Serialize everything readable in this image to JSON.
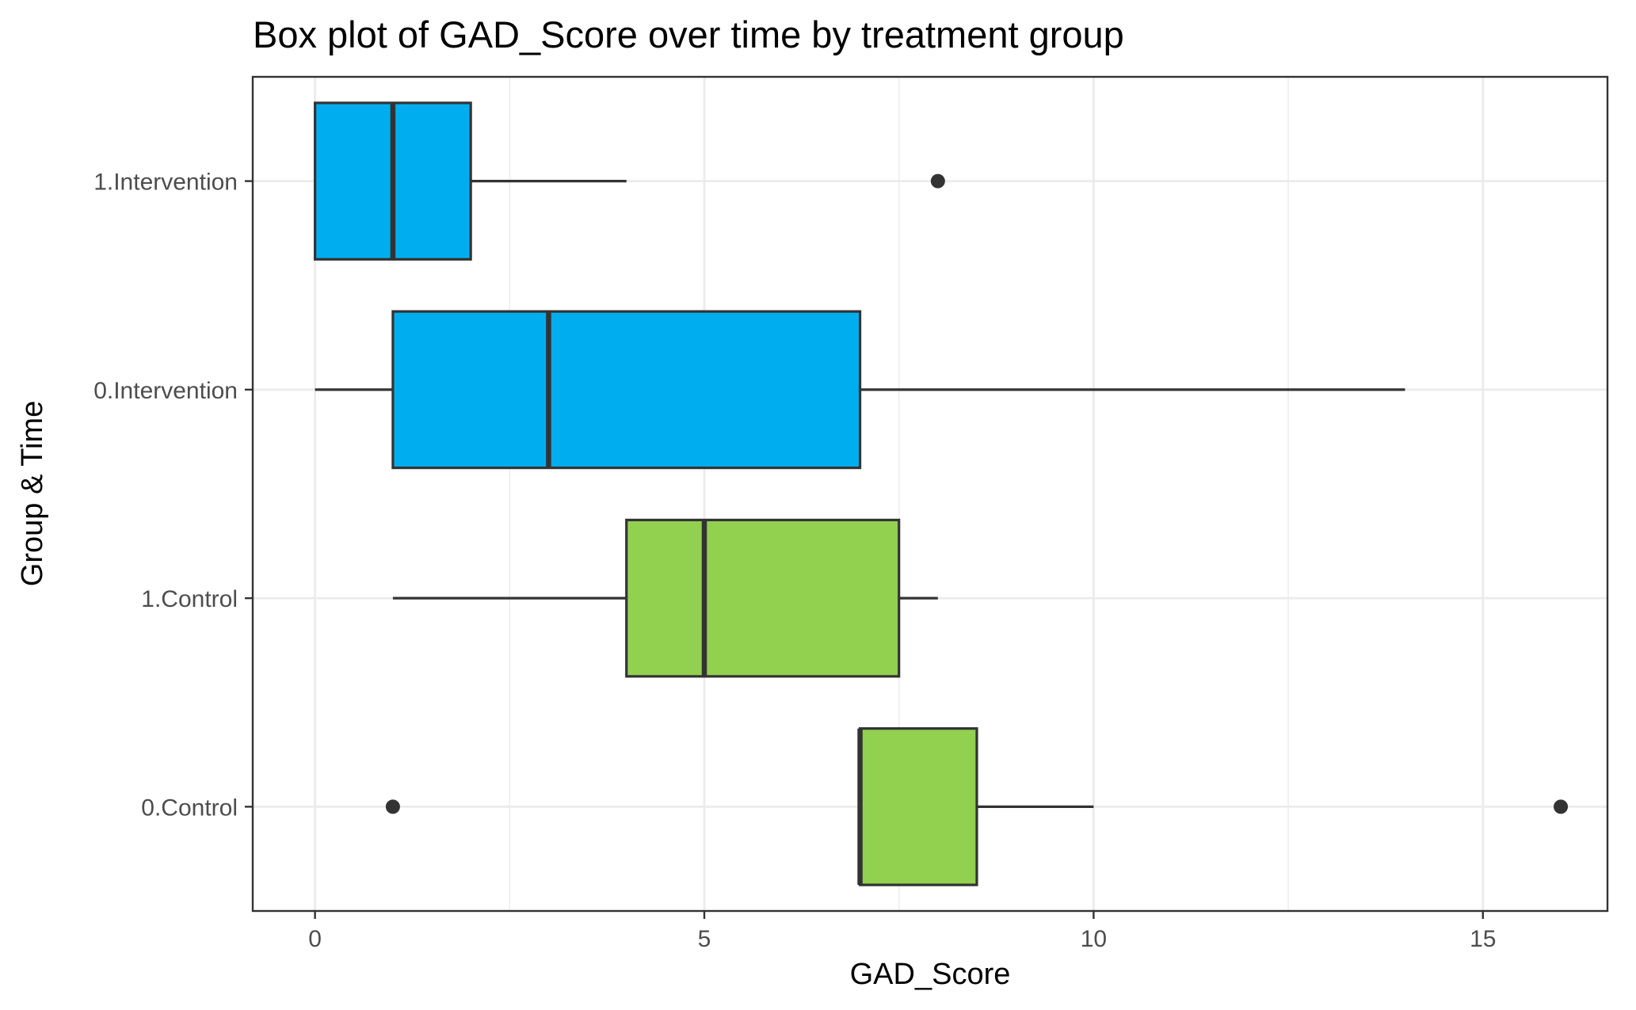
{
  "chart_data": {
    "type": "boxplot",
    "orientation": "horizontal",
    "title": "Box plot of GAD_Score over time by treatment group",
    "xlabel": "GAD_Score",
    "ylabel": "Group & Time",
    "xlim": [
      -0.8,
      16.6
    ],
    "xticks": [
      0,
      5,
      10,
      15
    ],
    "grid": true,
    "legend": "none",
    "colors": {
      "Intervention": "#00AEEF",
      "Control": "#92D050",
      "outline": "#333333",
      "grid": "#EBEBEB",
      "panel_border": "#333333"
    },
    "categories": [
      "1.Intervention",
      "0.Intervention",
      "1.Control",
      "0.Control"
    ],
    "boxes": [
      {
        "category": "1.Intervention",
        "group": "Intervention",
        "whisker_low": 0,
        "q1": 0,
        "median": 1,
        "q3": 2,
        "whisker_high": 4,
        "outliers": [
          8
        ]
      },
      {
        "category": "0.Intervention",
        "group": "Intervention",
        "whisker_low": 0,
        "q1": 1,
        "median": 3,
        "q3": 7,
        "whisker_high": 14,
        "outliers": []
      },
      {
        "category": "1.Control",
        "group": "Control",
        "whisker_low": 1,
        "q1": 4,
        "median": 5,
        "q3": 7.5,
        "whisker_high": 8,
        "outliers": []
      },
      {
        "category": "0.Control",
        "group": "Control",
        "whisker_low": 7,
        "q1": 7,
        "median": 7,
        "q3": 8.5,
        "whisker_high": 10,
        "outliers": [
          1,
          16
        ]
      }
    ]
  }
}
